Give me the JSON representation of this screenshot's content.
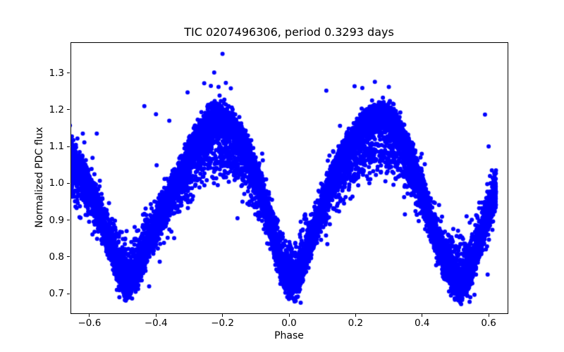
{
  "chart_data": {
    "type": "scatter",
    "title": "TIC 0207496306, period 0.3293 days",
    "xlabel": "Phase",
    "ylabel": "Normalized PDC flux",
    "marker_color": "#0000ff",
    "marker_px_radius": 3,
    "background_color": "#ffffff",
    "grid": false,
    "legend": null,
    "xlim": [
      -0.657,
      0.657
    ],
    "ylim": [
      0.6465,
      1.3835
    ],
    "xticks": [
      {
        "v": -0.6,
        "label": "−0.6"
      },
      {
        "v": -0.4,
        "label": "−0.4"
      },
      {
        "v": -0.2,
        "label": "−0.2"
      },
      {
        "v": 0.0,
        "label": "0.0"
      },
      {
        "v": 0.2,
        "label": "0.2"
      },
      {
        "v": 0.4,
        "label": "0.4"
      },
      {
        "v": 0.6,
        "label": "0.6"
      }
    ],
    "yticks": [
      {
        "v": 0.7,
        "label": "0.7"
      },
      {
        "v": 0.8,
        "label": "0.8"
      },
      {
        "v": 0.9,
        "label": "0.9"
      },
      {
        "v": 1.0,
        "label": "1.0"
      },
      {
        "v": 1.1,
        "label": "1.1"
      },
      {
        "v": 1.2,
        "label": "1.2"
      },
      {
        "v": 1.3,
        "label": "1.3"
      }
    ],
    "n_points": 16000,
    "phase_range": [
      -0.662,
      0.622
    ],
    "pivot": 0.955,
    "mean_curve": {
      "phase": [
        -0.663,
        -0.655,
        -0.62,
        -0.58,
        -0.545,
        -0.51,
        -0.485,
        -0.46,
        -0.43,
        -0.4,
        -0.37,
        -0.34,
        -0.31,
        -0.28,
        -0.25,
        -0.22,
        -0.19,
        -0.16,
        -0.13,
        -0.1,
        -0.07,
        -0.04,
        -0.015,
        0.01,
        0.035,
        0.06,
        0.09,
        0.12,
        0.15,
        0.18,
        0.21,
        0.24,
        0.275,
        0.31,
        0.34,
        0.37,
        0.4,
        0.43,
        0.46,
        0.49,
        0.52,
        0.55,
        0.58,
        0.605,
        0.622
      ],
      "flux": [
        1.075,
        1.07,
        1.025,
        0.945,
        0.855,
        0.765,
        0.725,
        0.755,
        0.82,
        0.885,
        0.945,
        1.0,
        1.06,
        1.11,
        1.15,
        1.17,
        1.165,
        1.14,
        1.095,
        1.025,
        0.935,
        0.835,
        0.755,
        0.725,
        0.76,
        0.825,
        0.91,
        0.985,
        1.05,
        1.1,
        1.14,
        1.165,
        1.18,
        1.165,
        1.125,
        1.06,
        0.975,
        0.88,
        0.8,
        0.745,
        0.722,
        0.775,
        0.865,
        0.94,
        0.985
      ]
    },
    "populations": [
      {
        "name": "primary-band",
        "fraction": 0.805,
        "scale": 1.0,
        "offset": 0.0,
        "sigma": 0.02,
        "clamp": 2.8
      },
      {
        "name": "secondary-band",
        "fraction": 0.17,
        "scale": 0.7,
        "offset": -0.015,
        "sigma": 0.035,
        "clamp": 2.5
      },
      {
        "name": "diffuse-halo",
        "fraction": 0.025,
        "scale": 0.85,
        "offset": 0.0,
        "sigma": 0.055,
        "clamp": 9.0
      }
    ],
    "outliers": [
      [
        -0.2,
        1.352
      ],
      [
        -0.225,
        1.301
      ],
      [
        -0.255,
        1.272
      ],
      [
        -0.235,
        1.265
      ],
      [
        -0.212,
        1.262
      ],
      [
        -0.19,
        1.273
      ],
      [
        -0.175,
        1.258
      ],
      [
        -0.305,
        1.247
      ],
      [
        -0.4,
        1.188
      ],
      [
        -0.36,
        1.17
      ],
      [
        -0.62,
        1.135
      ],
      [
        -0.578,
        1.135
      ],
      [
        0.112,
        1.252
      ],
      [
        0.197,
        1.264
      ],
      [
        0.258,
        1.276
      ],
      [
        0.3,
        1.262
      ],
      [
        0.589,
        1.187
      ],
      [
        0.6,
        1.1
      ],
      [
        0.604,
        1.02
      ],
      [
        -0.51,
        0.69
      ],
      [
        0.035,
        0.675
      ],
      [
        0.02,
        0.68
      ],
      [
        0.52,
        0.687
      ],
      [
        0.545,
        0.69
      ],
      [
        0.597,
        0.752
      ],
      [
        0.498,
        0.687
      ],
      [
        -0.155,
        0.905
      ],
      [
        -0.14,
        0.95
      ],
      [
        -0.435,
        1.21
      ]
    ]
  }
}
